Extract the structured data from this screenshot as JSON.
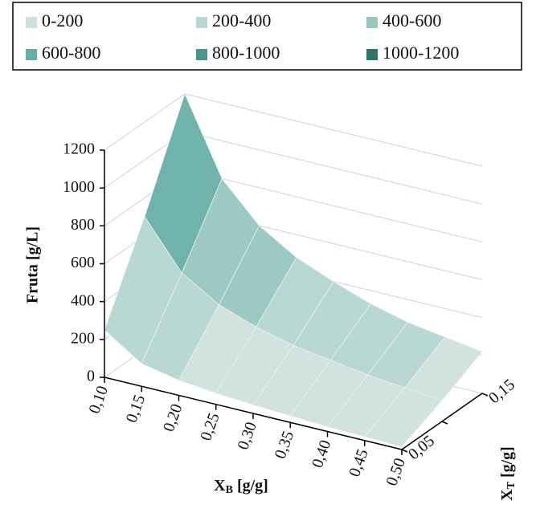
{
  "chart_data": {
    "type": "surface",
    "y_title": "Fruta [g/L]",
    "x_title": {
      "main": "X",
      "sub": "B",
      "unit": " [g/g]"
    },
    "depth_title": {
      "main": "X",
      "sub": "T",
      "unit": " [g/g]"
    },
    "categories": [
      "0,10",
      "0,15",
      "0,20",
      "0,25",
      "0,30",
      "0,35",
      "0,40",
      "0,45",
      "0,50"
    ],
    "depth_categories": [
      "0,05",
      null,
      "0,15"
    ],
    "values": [
      [
        250,
        120,
        80,
        60,
        45,
        35,
        25,
        20,
        15
      ],
      [
        700,
        450,
        330,
        260,
        210,
        180,
        150,
        130,
        110
      ],
      [
        1200,
        800,
        600,
        480,
        400,
        330,
        280,
        250,
        220
      ]
    ],
    "ylim": [
      0,
      1200
    ],
    "yticks": [
      0,
      200,
      400,
      600,
      800,
      1000,
      1200
    ],
    "grid": true,
    "legend_position": "top",
    "series": [
      {
        "name": "0-200",
        "color": "#cfe0dd"
      },
      {
        "name": "200-400",
        "color": "#b6d6d1"
      },
      {
        "name": "400-600",
        "color": "#97c6c0"
      },
      {
        "name": "600-800",
        "color": "#67afa8"
      },
      {
        "name": "800-1000",
        "color": "#47958e"
      },
      {
        "name": "1000-1200",
        "color": "#31726c"
      }
    ]
  }
}
